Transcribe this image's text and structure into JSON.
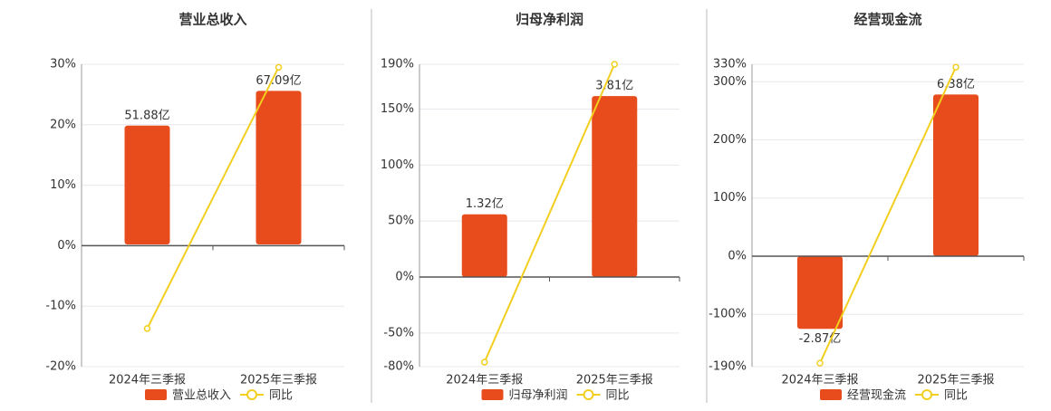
{
  "chart_data": [
    {
      "type": "combo",
      "title": "营业总收入",
      "categories": [
        "2024年三季报",
        "2025年三季报"
      ],
      "series": [
        {
          "name": "营业总收入",
          "color": "#e84c1c",
          "axis": "y2",
          "values": [
            51.88,
            67.09
          ],
          "value_labels": [
            "51.88亿",
            "67.09亿"
          ]
        },
        {
          "name": "同比",
          "color": "#f2cf1f",
          "values": [
            -13.7,
            29.5
          ]
        }
      ],
      "ylim": [
        -20,
        30
      ],
      "yticks": [
        {
          "value": 30,
          "label": "30%"
        },
        {
          "value": 20,
          "label": "20%"
        },
        {
          "value": 10,
          "label": "10%"
        },
        {
          "value": 0,
          "label": "0%"
        },
        {
          "value": -10,
          "label": "-10%"
        },
        {
          "value": -20,
          "label": "-20%"
        }
      ],
      "y2lim": [
        -53.4,
        78.7
      ],
      "grid": true
    },
    {
      "type": "combo",
      "title": "归母净利润",
      "categories": [
        "2024年三季报",
        "2025年三季报"
      ],
      "series": [
        {
          "name": "归母净利润",
          "color": "#e84c1c",
          "axis": "y2",
          "values": [
            1.32,
            3.81
          ],
          "value_labels": [
            "1.32亿",
            "3.81亿"
          ]
        },
        {
          "name": "同比",
          "color": "#f2cf1f",
          "values": [
            -76,
            190
          ]
        }
      ],
      "ylim": [
        -80,
        190
      ],
      "yticks": [
        {
          "value": 190,
          "label": "190%"
        },
        {
          "value": 150,
          "label": "150%"
        },
        {
          "value": 100,
          "label": "100%"
        },
        {
          "value": 50,
          "label": "50%"
        },
        {
          "value": 0,
          "label": "0%"
        },
        {
          "value": -50,
          "label": "-50%"
        },
        {
          "value": -80,
          "label": "-80%"
        }
      ],
      "y2lim": [
        -1.89,
        4.48
      ],
      "grid": true
    },
    {
      "type": "combo",
      "title": "经营现金流",
      "categories": [
        "2024年三季报",
        "2025年三季报"
      ],
      "series": [
        {
          "name": "经营现金流",
          "color": "#e84c1c",
          "axis": "y2",
          "values": [
            -2.87,
            6.38
          ],
          "value_labels": [
            "-2.87亿",
            "6.38亿"
          ]
        },
        {
          "name": "同比",
          "color": "#f2cf1f",
          "values": [
            -184,
            325
          ]
        }
      ],
      "ylim": [
        -190,
        330
      ],
      "yticks": [
        {
          "value": 330,
          "label": "330%"
        },
        {
          "value": 300,
          "label": "300%"
        },
        {
          "value": 200,
          "label": "200%"
        },
        {
          "value": 100,
          "label": "100%"
        },
        {
          "value": 0,
          "label": "0%"
        },
        {
          "value": -100,
          "label": "-100%"
        },
        {
          "value": -190,
          "label": "-190%"
        }
      ],
      "y2lim": [
        -4.36,
        7.57
      ],
      "grid": true
    }
  ]
}
